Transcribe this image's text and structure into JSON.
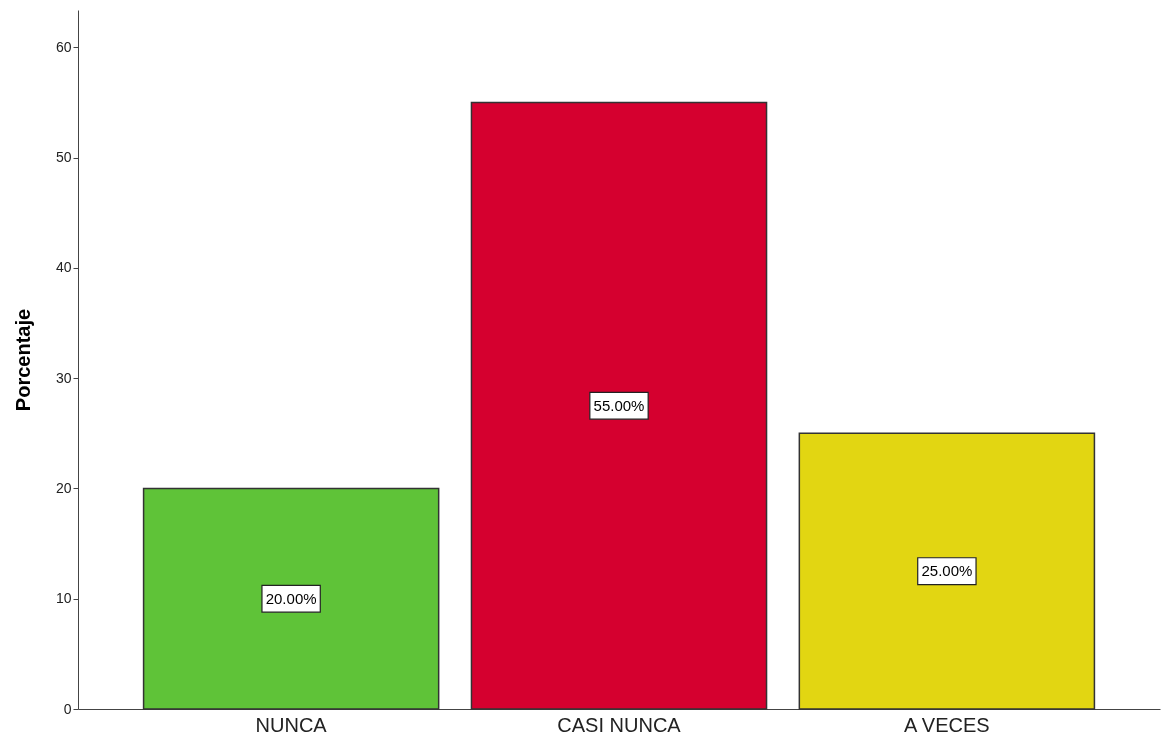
{
  "chart_data": {
    "type": "bar",
    "ylabel": "Porcentaje",
    "categories": [
      "NUNCA",
      "CASI NUNCA",
      "A VECES"
    ],
    "values": [
      20,
      55,
      25
    ],
    "colors": [
      "#5fc338",
      "#d5002f",
      "#e2d612"
    ],
    "value_labels": [
      "20.00%",
      "55.00%",
      "25.00%"
    ],
    "ylim": [
      0,
      63.4
    ],
    "yticks": [
      0,
      10,
      20,
      30,
      40,
      50,
      60
    ],
    "grid": false
  }
}
